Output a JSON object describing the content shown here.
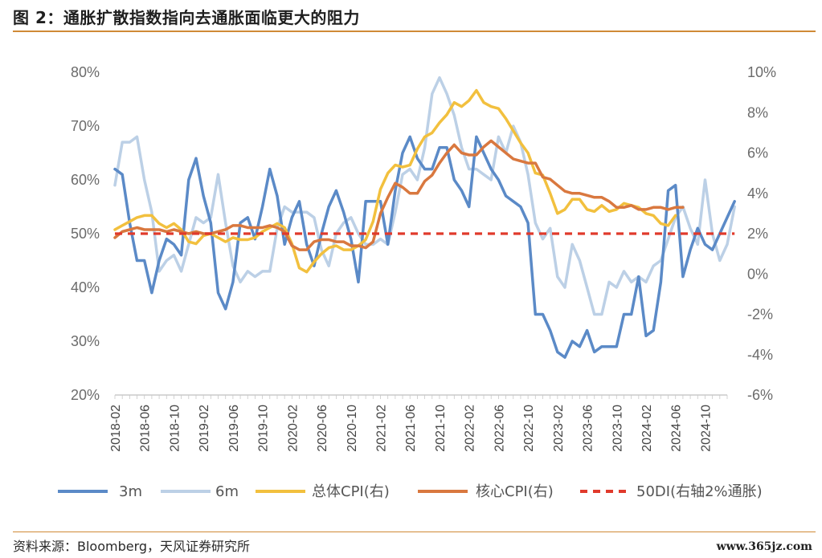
{
  "title": "图 2：通胀扩散指数指向去通胀面临更大的阻力",
  "source": "资料来源：Bloomberg，天风证券研究所",
  "watermark": "www.365jz.com",
  "chart_data": {
    "type": "line",
    "left_axis": {
      "ticks": [
        "20%",
        "30%",
        "40%",
        "50%",
        "60%",
        "70%",
        "80%"
      ],
      "ylim": [
        20,
        80
      ]
    },
    "right_axis": {
      "ticks": [
        "-6%",
        "-4%",
        "-2%",
        "0%",
        "2%",
        "4%",
        "6%",
        "8%",
        "10%"
      ],
      "ylim": [
        -6,
        10
      ]
    },
    "x_ticks": [
      "2018-02",
      "2018-06",
      "2018-10",
      "2019-02",
      "2019-06",
      "2019-10",
      "2020-02",
      "2020-06",
      "2020-10",
      "2021-02",
      "2021-06",
      "2021-10",
      "2022-02",
      "2022-06",
      "2022-10",
      "2023-02",
      "2023-06",
      "2023-10",
      "2024-02",
      "2024-06",
      "2024-10"
    ],
    "x_start": "2018-02",
    "series": [
      {
        "name": "3m",
        "axis": "left",
        "color": "#5b8ac7",
        "dash": false,
        "values": [
          62,
          61,
          52,
          45,
          45,
          39,
          45,
          49,
          48,
          46,
          60,
          64,
          57,
          52,
          39,
          36,
          41,
          52,
          53,
          49,
          55,
          62,
          57,
          48,
          53,
          56,
          48,
          44,
          50,
          55,
          58,
          54,
          49,
          41,
          56,
          56,
          56,
          48,
          58,
          65,
          68,
          64,
          62,
          62,
          66,
          66,
          60,
          58,
          55,
          68,
          65,
          62,
          60,
          57,
          56,
          55,
          52,
          35,
          35,
          32,
          28,
          27,
          30,
          29,
          32,
          28,
          29,
          29,
          29,
          35,
          35,
          42,
          31,
          32,
          41,
          58,
          59,
          42,
          47,
          51,
          48,
          47,
          50,
          53,
          56
        ]
      },
      {
        "name": "6m",
        "axis": "left",
        "color": "#bcd0e6",
        "dash": false,
        "values": [
          59,
          67,
          67,
          68,
          60,
          54,
          43,
          45,
          46,
          43,
          48,
          53,
          52,
          53,
          61,
          52,
          44,
          41,
          43,
          42,
          43,
          43,
          51,
          55,
          54,
          54,
          54,
          53,
          47,
          44,
          50,
          52,
          53,
          50,
          48,
          48,
          49,
          48,
          54,
          61,
          62,
          60,
          66,
          76,
          79,
          76,
          72,
          66,
          62,
          62,
          61,
          60,
          68,
          65,
          70,
          67,
          61,
          52,
          49,
          51,
          42,
          40,
          48,
          45,
          40,
          35,
          35,
          41,
          40,
          43,
          41,
          42,
          41,
          44,
          45,
          49,
          53,
          55,
          51,
          48,
          60,
          50,
          45,
          48,
          55
        ]
      },
      {
        "name": "总体CPI(右)",
        "axis": "right",
        "color": "#f2c03e",
        "dash": false,
        "values": [
          2.2,
          2.4,
          2.6,
          2.8,
          2.9,
          2.9,
          2.5,
          2.3,
          2.5,
          2.2,
          1.6,
          1.5,
          1.9,
          2.0,
          1.8,
          1.6,
          1.8,
          1.7,
          1.7,
          1.8,
          2.1,
          2.3,
          2.5,
          2.3,
          1.5,
          0.3,
          0.1,
          0.6,
          1.0,
          1.3,
          1.4,
          1.2,
          1.2,
          1.4,
          1.7,
          2.6,
          4.2,
          5.0,
          5.4,
          5.3,
          5.4,
          6.2,
          6.8,
          7.0,
          7.5,
          7.9,
          8.5,
          8.3,
          8.6,
          9.1,
          8.5,
          8.3,
          8.2,
          7.7,
          7.1,
          6.5,
          6.0,
          5.0,
          4.9,
          4.0,
          3.0,
          3.2,
          3.7,
          3.7,
          3.2,
          3.1,
          3.4,
          3.1,
          3.2,
          3.5,
          3.4,
          3.3,
          3.0,
          2.9,
          2.5,
          2.4,
          2.9
        ]
      },
      {
        "name": "核心CPI(右)",
        "axis": "right",
        "color": "#d9783f",
        "dash": false,
        "values": [
          1.8,
          2.1,
          2.2,
          2.3,
          2.2,
          2.2,
          2.2,
          2.1,
          2.2,
          2.1,
          2.0,
          2.1,
          2.0,
          2.0,
          2.1,
          2.2,
          2.4,
          2.4,
          2.3,
          2.3,
          2.3,
          2.4,
          2.3,
          2.1,
          1.4,
          1.2,
          1.2,
          1.6,
          1.7,
          1.7,
          1.6,
          1.6,
          1.4,
          1.4,
          1.3,
          1.6,
          3.0,
          3.8,
          4.5,
          4.3,
          4.0,
          4.0,
          4.6,
          4.9,
          5.5,
          6.0,
          6.4,
          6.0,
          5.9,
          5.9,
          6.3,
          6.6,
          6.3,
          6.0,
          5.7,
          5.6,
          5.5,
          5.5,
          4.8,
          4.7,
          4.4,
          4.1,
          4.0,
          4.0,
          3.9,
          3.8,
          3.8,
          3.6,
          3.3,
          3.3,
          3.4,
          3.2,
          3.2,
          3.3,
          3.3,
          3.2,
          3.3,
          3.3
        ]
      },
      {
        "name": "50DI(右轴2%通胀)",
        "axis": "left",
        "color": "#e03a2c",
        "dash": true,
        "values": [
          50,
          50,
          50,
          50,
          50,
          50,
          50,
          50,
          50,
          50,
          50,
          50,
          50,
          50,
          50,
          50,
          50,
          50,
          50,
          50,
          50,
          50,
          50,
          50,
          50,
          50,
          50,
          50,
          50,
          50,
          50,
          50,
          50,
          50,
          50,
          50,
          50,
          50,
          50,
          50,
          50,
          50,
          50,
          50,
          50,
          50,
          50,
          50,
          50,
          50,
          50,
          50,
          50,
          50,
          50,
          50,
          50,
          50,
          50,
          50,
          50,
          50,
          50,
          50,
          50,
          50,
          50,
          50,
          50,
          50,
          50,
          50,
          50,
          50,
          50,
          50,
          50,
          50,
          50,
          50,
          50,
          50,
          50,
          50,
          50
        ]
      }
    ]
  }
}
